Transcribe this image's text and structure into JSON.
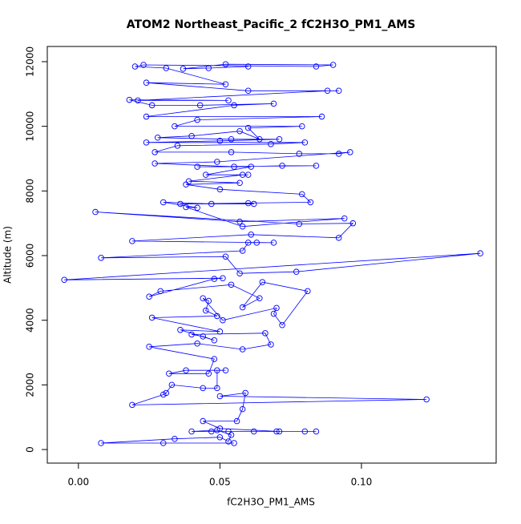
{
  "chart_data": {
    "type": "scatter",
    "lines": true,
    "title": "ATOM2 Northeast_Pacific_2 fC2H3O_PM1_AMS",
    "x_label": "fC2H3O_PM1_AMS",
    "y_label": "Altitude (m)",
    "color": "#0000ff",
    "xlim": [
      -0.011,
      0.1476
    ],
    "ylim": [
      -420,
      12470
    ],
    "xticks": [
      {
        "value": 0,
        "label": "0.00"
      },
      {
        "value": 0.05,
        "label": "0.05"
      },
      {
        "value": 0.1,
        "label": "0.10"
      }
    ],
    "yticks": [
      0,
      2000,
      4000,
      6000,
      8000,
      10000,
      12000
    ],
    "x": [
      0.055,
      0.03,
      0.008,
      0.034,
      0.05,
      0.053,
      0.054,
      0.049,
      0.04,
      0.047,
      0.053,
      0.062,
      0.07,
      0.084,
      0.08,
      0.071,
      0.05,
      0.044,
      0.056,
      0.058,
      0.059,
      0.05,
      0.123,
      0.019,
      0.03,
      0.031,
      0.033,
      0.044,
      0.049,
      0.049,
      0.052,
      0.038,
      0.032,
      0.046,
      0.048,
      0.025,
      0.042,
      0.058,
      0.068,
      0.066,
      0.04,
      0.044,
      0.048,
      0.036,
      0.05,
      0.026,
      0.049,
      0.045,
      0.046,
      0.044,
      0.051,
      0.07,
      0.069,
      0.072,
      0.081,
      0.065,
      0.058,
      0.064,
      0.054,
      0.029,
      0.025,
      0.048,
      0.051,
      -0.005,
      0.142,
      0.077,
      0.057,
      0.052,
      0.008,
      0.058,
      0.06,
      0.063,
      0.069,
      0.019,
      0.061,
      0.092,
      0.097,
      0.078,
      0.006,
      0.057,
      0.094,
      0.058,
      0.038,
      0.042,
      0.03,
      0.047,
      0.06,
      0.062,
      0.036,
      0.082,
      0.079,
      0.05,
      0.038,
      0.057,
      0.039,
      0.058,
      0.06,
      0.045,
      0.061,
      0.042,
      0.084,
      0.072,
      0.055,
      0.027,
      0.049,
      0.096,
      0.092,
      0.078,
      0.054,
      0.027,
      0.035,
      0.068,
      0.08,
      0.024,
      0.05,
      0.071,
      0.054,
      0.028,
      0.04,
      0.057,
      0.064,
      0.06,
      0.079,
      0.034,
      0.042,
      0.086,
      0.024,
      0.055,
      0.069,
      0.043,
      0.026,
      0.018,
      0.053,
      0.021,
      0.088,
      0.092,
      0.06,
      0.024,
      0.052,
      0.031,
      0.02,
      0.023,
      0.084,
      0.09,
      0.052,
      0.037,
      0.046,
      0.06
    ],
    "y": [
      200,
      200,
      200,
      330,
      380,
      250,
      450,
      600,
      560,
      560,
      560,
      560,
      560,
      560,
      560,
      560,
      650,
      880,
      880,
      1250,
      1750,
      1650,
      1550,
      1380,
      1700,
      1750,
      2000,
      1900,
      1900,
      2450,
      2450,
      2450,
      2350,
      2350,
      2800,
      3180,
      3280,
      3100,
      3250,
      3600,
      3560,
      3500,
      3380,
      3700,
      3650,
      4080,
      4130,
      4300,
      4600,
      4680,
      4000,
      4380,
      4200,
      3850,
      4900,
      5180,
      4400,
      4680,
      5100,
      4900,
      4730,
      5280,
      5300,
      5250,
      6070,
      5500,
      5450,
      5970,
      5930,
      6150,
      6400,
      6400,
      6400,
      6450,
      6650,
      6550,
      7000,
      6980,
      7350,
      7050,
      7150,
      6900,
      7500,
      7480,
      7650,
      7600,
      7620,
      7600,
      7600,
      7650,
      7900,
      8050,
      8200,
      8250,
      8300,
      8500,
      8500,
      8500,
      8750,
      8750,
      8780,
      8780,
      8750,
      8850,
      8900,
      9200,
      9150,
      9150,
      9200,
      9200,
      9400,
      9450,
      9500,
      9500,
      9550,
      9600,
      9600,
      9650,
      9700,
      9850,
      9600,
      9950,
      10000,
      10000,
      10200,
      10300,
      10300,
      10650,
      10700,
      10650,
      10650,
      10820,
      10800,
      10800,
      11100,
      11100,
      11100,
      11350,
      11300,
      11800,
      11850,
      11900,
      11850,
      11900,
      11920,
      11780,
      11800,
      11850
    ]
  }
}
